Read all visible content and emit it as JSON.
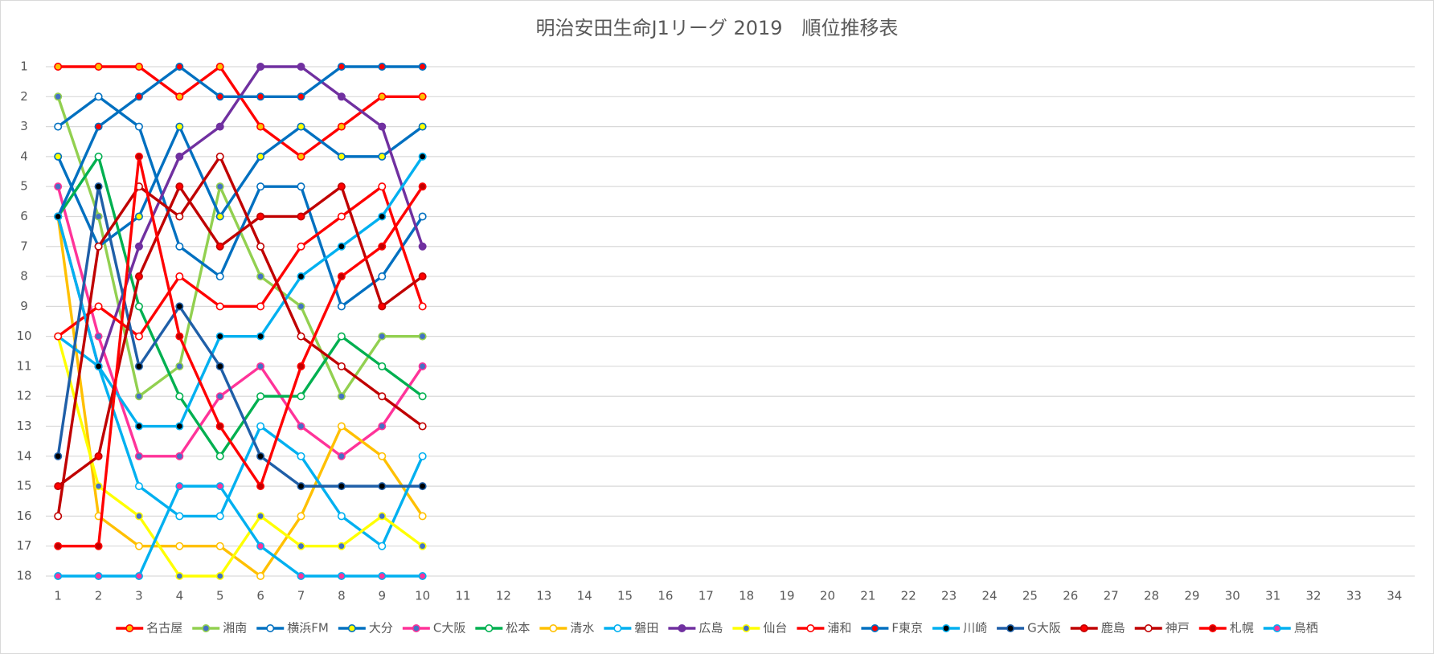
{
  "chart_data": {
    "type": "line",
    "title": "明治安田生命J1リーグ 2019　順位推移表",
    "categories": [
      "1",
      "2",
      "3",
      "4",
      "5",
      "6",
      "7",
      "8",
      "9",
      "10",
      "11",
      "12",
      "13",
      "14",
      "15",
      "16",
      "17",
      "18",
      "19",
      "20",
      "21",
      "22",
      "23",
      "24",
      "25",
      "26",
      "27",
      "28",
      "29",
      "30",
      "31",
      "32",
      "33",
      "34"
    ],
    "ylim": [
      1,
      18
    ],
    "y_inverted": true,
    "yticks": [
      1,
      2,
      3,
      4,
      5,
      6,
      7,
      8,
      9,
      10,
      11,
      12,
      13,
      14,
      15,
      16,
      17,
      18
    ],
    "grid": true,
    "legend": "bottom",
    "series": [
      {
        "name": "名古屋",
        "color": "#ff0000",
        "marker_color": "#ffc000",
        "values": [
          1,
          1,
          1,
          2,
          1,
          3,
          4,
          3,
          2,
          2,
          null,
          null,
          null,
          null,
          null,
          null,
          null,
          null,
          null,
          null,
          null,
          null,
          null,
          null,
          null,
          null,
          null,
          null,
          null,
          null,
          null,
          null,
          null,
          null
        ]
      },
      {
        "name": "湘南",
        "color": "#92d050",
        "marker_color": "#4472c4",
        "values": [
          2,
          6,
          12,
          11,
          5,
          8,
          9,
          12,
          10,
          10,
          null,
          null,
          null,
          null,
          null,
          null,
          null,
          null,
          null,
          null,
          null,
          null,
          null,
          null,
          null,
          null,
          null,
          null,
          null,
          null,
          null,
          null,
          null,
          null
        ]
      },
      {
        "name": "横浜FM",
        "color": "#0070c0",
        "marker_color": "#ffffff",
        "values": [
          3,
          2,
          3,
          7,
          8,
          5,
          5,
          9,
          8,
          6,
          null,
          null,
          null,
          null,
          null,
          null,
          null,
          null,
          null,
          null,
          null,
          null,
          null,
          null,
          null,
          null,
          null,
          null,
          null,
          null,
          null,
          null,
          null,
          null
        ]
      },
      {
        "name": "大分",
        "color": "#0070c0",
        "marker_color": "#ffff00",
        "values": [
          4,
          7,
          6,
          3,
          6,
          4,
          3,
          4,
          4,
          3,
          null,
          null,
          null,
          null,
          null,
          null,
          null,
          null,
          null,
          null,
          null,
          null,
          null,
          null,
          null,
          null,
          null,
          null,
          null,
          null,
          null,
          null,
          null,
          null
        ]
      },
      {
        "name": "C大阪",
        "color": "#ff3399",
        "marker_color": "#4472c4",
        "values": [
          5,
          10,
          14,
          14,
          12,
          11,
          13,
          14,
          13,
          11,
          null,
          null,
          null,
          null,
          null,
          null,
          null,
          null,
          null,
          null,
          null,
          null,
          null,
          null,
          null,
          null,
          null,
          null,
          null,
          null,
          null,
          null,
          null,
          null
        ]
      },
      {
        "name": "松本",
        "color": "#00b050",
        "marker_color": "#ffffff",
        "values": [
          6,
          4,
          9,
          12,
          14,
          12,
          12,
          10,
          11,
          12,
          null,
          null,
          null,
          null,
          null,
          null,
          null,
          null,
          null,
          null,
          null,
          null,
          null,
          null,
          null,
          null,
          null,
          null,
          null,
          null,
          null,
          null,
          null,
          null
        ]
      },
      {
        "name": "清水",
        "color": "#ffc000",
        "marker_color": "#ffffff",
        "values": [
          6,
          16,
          17,
          17,
          17,
          18,
          16,
          13,
          14,
          16,
          null,
          null,
          null,
          null,
          null,
          null,
          null,
          null,
          null,
          null,
          null,
          null,
          null,
          null,
          null,
          null,
          null,
          null,
          null,
          null,
          null,
          null,
          null,
          null
        ]
      },
      {
        "name": "磐田",
        "color": "#00b0f0",
        "marker_color": "#ffffff",
        "values": [
          10,
          11,
          15,
          16,
          16,
          13,
          14,
          16,
          17,
          14,
          null,
          null,
          null,
          null,
          null,
          null,
          null,
          null,
          null,
          null,
          null,
          null,
          null,
          null,
          null,
          null,
          null,
          null,
          null,
          null,
          null,
          null,
          null,
          null
        ]
      },
      {
        "name": "広島",
        "color": "#7030a0",
        "marker_color": "#7030a0",
        "values": [
          6,
          11,
          7,
          4,
          3,
          1,
          1,
          2,
          3,
          7,
          null,
          null,
          null,
          null,
          null,
          null,
          null,
          null,
          null,
          null,
          null,
          null,
          null,
          null,
          null,
          null,
          null,
          null,
          null,
          null,
          null,
          null,
          null,
          null
        ]
      },
      {
        "name": "仙台",
        "color": "#ffff00",
        "marker_color": "#4472c4",
        "values": [
          10,
          15,
          16,
          18,
          18,
          16,
          17,
          17,
          16,
          17,
          null,
          null,
          null,
          null,
          null,
          null,
          null,
          null,
          null,
          null,
          null,
          null,
          null,
          null,
          null,
          null,
          null,
          null,
          null,
          null,
          null,
          null,
          null,
          null
        ]
      },
      {
        "name": "浦和",
        "color": "#ff0000",
        "marker_color": "#ffffff",
        "values": [
          10,
          9,
          10,
          8,
          9,
          9,
          7,
          6,
          5,
          9,
          null,
          null,
          null,
          null,
          null,
          null,
          null,
          null,
          null,
          null,
          null,
          null,
          null,
          null,
          null,
          null,
          null,
          null,
          null,
          null,
          null,
          null,
          null,
          null
        ]
      },
      {
        "name": "F東京",
        "color": "#0070c0",
        "marker_color": "#ff0000",
        "values": [
          6,
          3,
          2,
          1,
          2,
          2,
          2,
          1,
          1,
          1,
          null,
          null,
          null,
          null,
          null,
          null,
          null,
          null,
          null,
          null,
          null,
          null,
          null,
          null,
          null,
          null,
          null,
          null,
          null,
          null,
          null,
          null,
          null,
          null
        ]
      },
      {
        "name": "川崎",
        "color": "#00b0f0",
        "marker_color": "#000000",
        "values": [
          6,
          11,
          13,
          13,
          10,
          10,
          8,
          7,
          6,
          4,
          null,
          null,
          null,
          null,
          null,
          null,
          null,
          null,
          null,
          null,
          null,
          null,
          null,
          null,
          null,
          null,
          null,
          null,
          null,
          null,
          null,
          null,
          null,
          null
        ]
      },
      {
        "name": "G大阪",
        "color": "#1f5fa8",
        "marker_color": "#000000",
        "values": [
          14,
          5,
          11,
          9,
          11,
          14,
          15,
          15,
          15,
          15,
          null,
          null,
          null,
          null,
          null,
          null,
          null,
          null,
          null,
          null,
          null,
          null,
          null,
          null,
          null,
          null,
          null,
          null,
          null,
          null,
          null,
          null,
          null,
          null
        ]
      },
      {
        "name": "鹿島",
        "color": "#c00000",
        "marker_color": "#ff0000",
        "values": [
          15,
          14,
          8,
          5,
          7,
          6,
          6,
          5,
          9,
          8,
          null,
          null,
          null,
          null,
          null,
          null,
          null,
          null,
          null,
          null,
          null,
          null,
          null,
          null,
          null,
          null,
          null,
          null,
          null,
          null,
          null,
          null,
          null,
          null
        ]
      },
      {
        "name": "神戸",
        "color": "#c00000",
        "marker_color": "#ffffff",
        "values": [
          16,
          7,
          5,
          6,
          4,
          7,
          10,
          11,
          12,
          13,
          null,
          null,
          null,
          null,
          null,
          null,
          null,
          null,
          null,
          null,
          null,
          null,
          null,
          null,
          null,
          null,
          null,
          null,
          null,
          null,
          null,
          null,
          null,
          null
        ]
      },
      {
        "name": "札幌",
        "color": "#ff0000",
        "marker_color": "#c00000",
        "values": [
          17,
          17,
          4,
          10,
          13,
          15,
          11,
          8,
          7,
          5,
          null,
          null,
          null,
          null,
          null,
          null,
          null,
          null,
          null,
          null,
          null,
          null,
          null,
          null,
          null,
          null,
          null,
          null,
          null,
          null,
          null,
          null,
          null,
          null
        ]
      },
      {
        "name": "鳥栖",
        "color": "#00b0f0",
        "marker_color": "#ff3399",
        "values": [
          18,
          18,
          18,
          15,
          15,
          17,
          18,
          18,
          18,
          18,
          null,
          null,
          null,
          null,
          null,
          null,
          null,
          null,
          null,
          null,
          null,
          null,
          null,
          null,
          null,
          null,
          null,
          null,
          null,
          null,
          null,
          null,
          null,
          null
        ]
      }
    ]
  }
}
